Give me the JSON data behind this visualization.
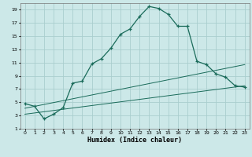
{
  "title": "",
  "xlabel": "Humidex (Indice chaleur)",
  "bg_color": "#cce8e8",
  "grid_color": "#aacece",
  "line_color": "#1a6b5a",
  "xlim": [
    -0.5,
    23.5
  ],
  "ylim": [
    1,
    20
  ],
  "xticks": [
    0,
    1,
    2,
    3,
    4,
    5,
    6,
    7,
    8,
    9,
    10,
    11,
    12,
    13,
    14,
    15,
    16,
    17,
    18,
    19,
    20,
    21,
    22,
    23
  ],
  "yticks": [
    1,
    3,
    5,
    7,
    9,
    11,
    13,
    15,
    17,
    19
  ],
  "curve1_x": [
    0,
    1,
    2,
    3,
    4,
    5,
    6,
    7,
    8,
    9,
    10,
    11,
    12,
    13,
    14,
    15,
    16,
    17,
    18,
    19,
    20,
    21,
    22,
    23
  ],
  "curve1_y": [
    4.8,
    4.4,
    2.5,
    3.2,
    4.2,
    7.9,
    8.2,
    10.8,
    11.6,
    13.2,
    15.3,
    16.1,
    18.0,
    19.5,
    19.2,
    18.3,
    16.5,
    16.5,
    11.2,
    10.7,
    9.3,
    8.8,
    7.5,
    7.3
  ],
  "line2_x": [
    0,
    23
  ],
  "line2_y": [
    4.1,
    10.7
  ],
  "line3_x": [
    0,
    23
  ],
  "line3_y": [
    3.2,
    7.5
  ]
}
